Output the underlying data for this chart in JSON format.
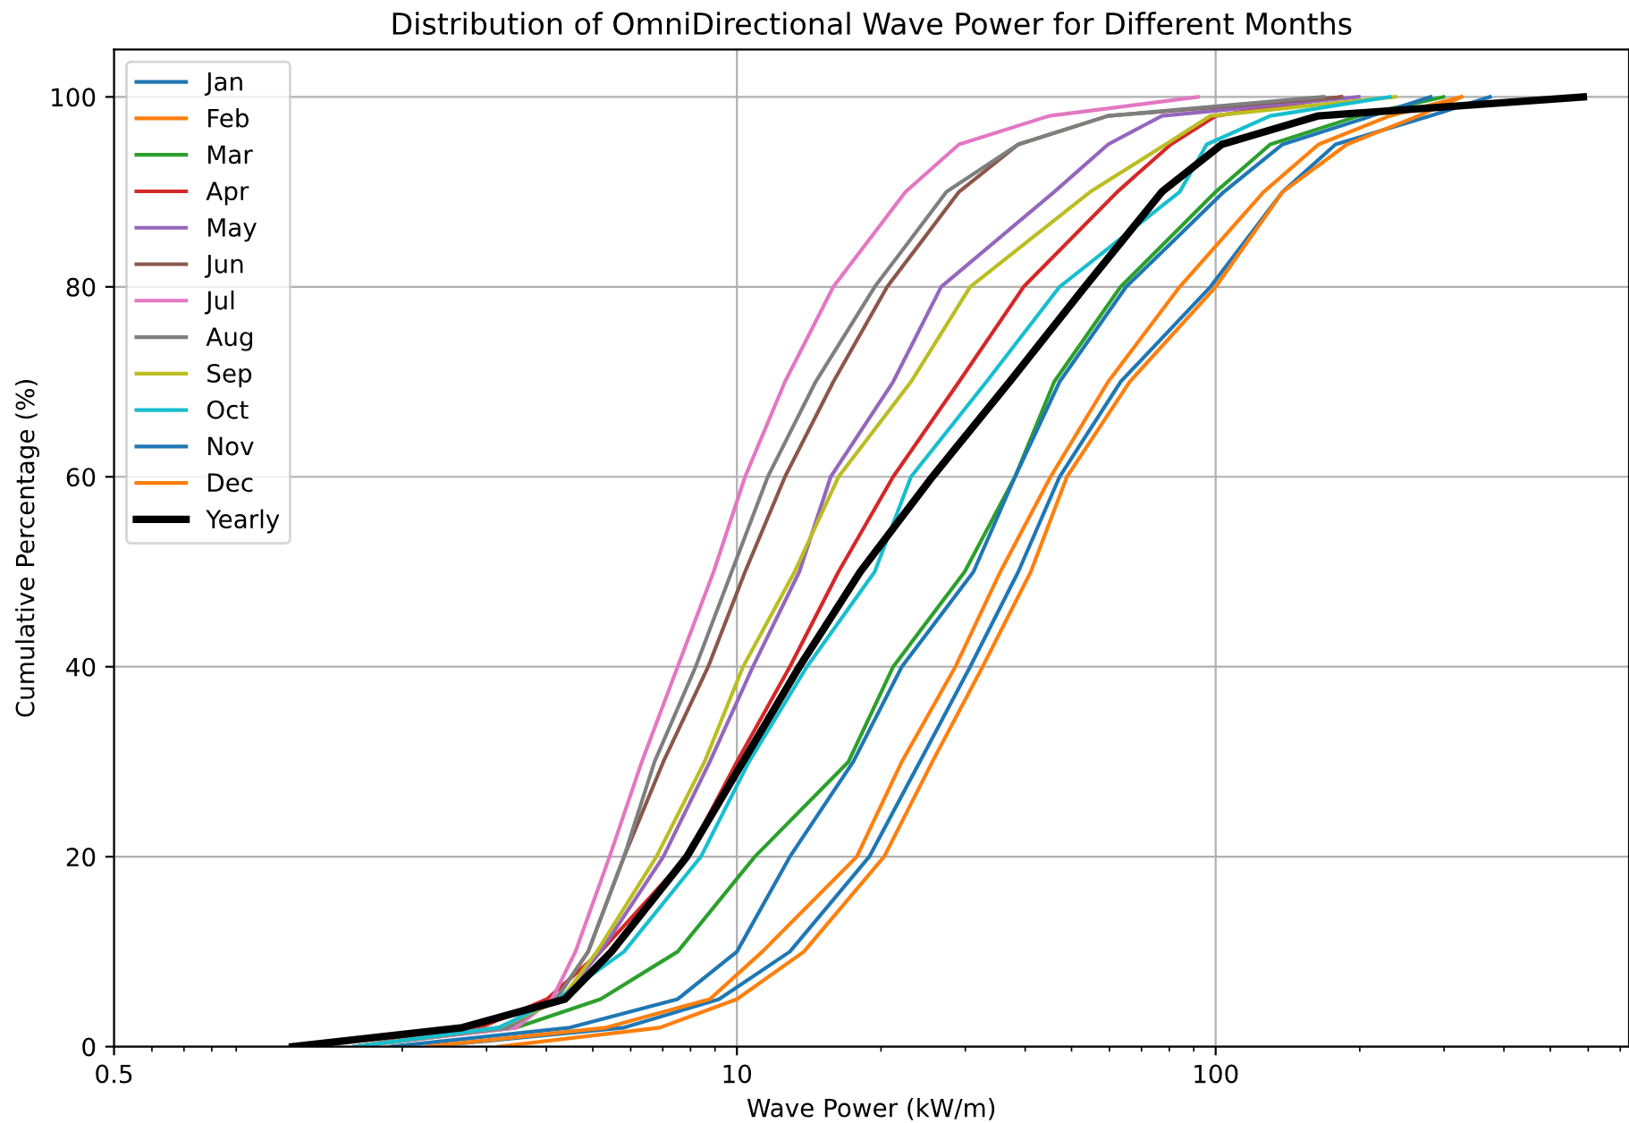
{
  "chart_data": {
    "type": "line",
    "title": "Distribution of OmniDirectional Wave Power for Different Months",
    "xlabel": "Wave Power (kW/m)",
    "ylabel": "Cumulative Percentage (%)",
    "log": "x",
    "xlim": [
      0.5,
      730
    ],
    "xticks": [
      0.5,
      10,
      100
    ],
    "ylim": [
      0,
      105
    ],
    "yticks": [
      0,
      20,
      40,
      60,
      80,
      100
    ],
    "grid": true,
    "legend": "top left",
    "series": [
      {
        "name": "Jan",
        "color": "#1f77b4",
        "x": [
          2.25,
          5.81,
          9.18,
          12.9,
          18.9,
          24.1,
          30.7,
          38.7,
          47.2,
          63.3,
          97.5,
          138,
          178,
          281,
          374
        ],
        "values": [
          0,
          2,
          5,
          10,
          20,
          30,
          40,
          50,
          60,
          70,
          80,
          90,
          95,
          98,
          100
        ]
      },
      {
        "name": "Feb",
        "color": "#ff7f0e",
        "x": [
          3.18,
          6.9,
          10.0,
          13.8,
          20.3,
          25.6,
          32.6,
          41.1,
          48.9,
          66.1,
          100,
          138,
          188,
          265,
          326
        ],
        "values": [
          0,
          2,
          5,
          10,
          20,
          30,
          40,
          50,
          60,
          70,
          80,
          90,
          95,
          98,
          100
        ]
      },
      {
        "name": "Mar",
        "color": "#2ca02c",
        "x": [
          1.59,
          3.46,
          5.19,
          7.52,
          10.9,
          17.1,
          21.2,
          29.9,
          38.1,
          46.0,
          63.3,
          100,
          130,
          199,
          299
        ],
        "values": [
          0,
          2,
          5,
          10,
          20,
          30,
          40,
          50,
          60,
          70,
          80,
          90,
          95,
          98,
          100
        ]
      },
      {
        "name": "Apr",
        "color": "#d62728",
        "x": [
          1.59,
          2.91,
          4.01,
          5.19,
          7.86,
          10.0,
          12.9,
          16.3,
          21.2,
          29.1,
          39.7,
          62.3,
          80.6,
          100,
          183
        ],
        "values": [
          0,
          2,
          5,
          10,
          20,
          30,
          40,
          50,
          60,
          70,
          80,
          90,
          95,
          98,
          100
        ]
      },
      {
        "name": "May",
        "color": "#9467bd",
        "x": [
          1.59,
          3.18,
          4.3,
          5.19,
          7.02,
          8.78,
          10.8,
          13.5,
          15.7,
          21.2,
          26.7,
          46.0,
          59.6,
          77.2,
          199
        ],
        "values": [
          0,
          2,
          5,
          10,
          20,
          30,
          40,
          50,
          60,
          70,
          80,
          90,
          95,
          98,
          100
        ]
      },
      {
        "name": "Jun",
        "color": "#8c564b",
        "x": [
          1.59,
          3.32,
          4.19,
          4.89,
          5.81,
          7.02,
          8.71,
          10.4,
          12.6,
          15.9,
          20.6,
          29.1,
          38.7,
          59.6,
          183
        ],
        "values": [
          0,
          2,
          5,
          10,
          20,
          30,
          40,
          50,
          60,
          70,
          80,
          90,
          95,
          98,
          100
        ]
      },
      {
        "name": "Jul",
        "color": "#e377c2",
        "x": [
          1.59,
          3.46,
          4.11,
          4.6,
          5.42,
          6.33,
          7.52,
          8.94,
          10.4,
          12.6,
          15.9,
          22.5,
          29.1,
          44.9,
          91.8
        ],
        "values": [
          0,
          2,
          5,
          10,
          20,
          30,
          40,
          50,
          60,
          70,
          80,
          90,
          95,
          98,
          100
        ]
      },
      {
        "name": "Aug",
        "color": "#7f7f7f",
        "x": [
          1.59,
          3.32,
          4.19,
          4.89,
          5.81,
          6.73,
          8.2,
          9.75,
          11.6,
          14.6,
          19.4,
          27.4,
          38.7,
          59.6,
          168
        ],
        "values": [
          0,
          2,
          5,
          10,
          20,
          30,
          40,
          50,
          60,
          70,
          80,
          90,
          95,
          98,
          100
        ]
      },
      {
        "name": "Sep",
        "color": "#bcbd22",
        "x": [
          1.59,
          3.18,
          4.3,
          5.1,
          6.79,
          8.56,
          10.3,
          13.2,
          16.3,
          23.1,
          30.7,
          54.7,
          78.6,
          97.5,
          237
        ],
        "values": [
          0,
          2,
          5,
          10,
          20,
          30,
          40,
          50,
          60,
          70,
          80,
          90,
          95,
          98,
          100
        ]
      },
      {
        "name": "Oct",
        "color": "#17becf",
        "x": [
          1.59,
          3.18,
          4.22,
          5.81,
          8.41,
          10.6,
          14.0,
          19.4,
          23.1,
          33.2,
          47.2,
          84.1,
          95.8,
          130,
          231
        ],
        "values": [
          0,
          2,
          5,
          10,
          20,
          30,
          40,
          50,
          60,
          70,
          80,
          90,
          95,
          98,
          100
        ]
      },
      {
        "name": "Nov",
        "color": "#1f77b4",
        "x": [
          1.89,
          4.48,
          7.52,
          10.0,
          12.9,
          17.5,
          22.1,
          31.2,
          38.1,
          47.2,
          65.0,
          104,
          138,
          212,
          281
        ],
        "values": [
          0,
          2,
          5,
          10,
          20,
          30,
          40,
          50,
          60,
          70,
          80,
          90,
          95,
          98,
          100
        ]
      },
      {
        "name": "Dec",
        "color": "#ff7f0e",
        "x": [
          2.25,
          5.33,
          8.78,
          11.3,
          17.8,
          22.1,
          28.6,
          35.5,
          45.2,
          59.6,
          84.1,
          126,
          164,
          231,
          326
        ],
        "values": [
          0,
          2,
          5,
          10,
          20,
          30,
          40,
          50,
          60,
          70,
          80,
          90,
          95,
          98,
          100
        ]
      },
      {
        "name": "Yearly",
        "color": "#000000",
        "x": [
          1.18,
          2.67,
          4.37,
          5.47,
          7.86,
          10.3,
          13.5,
          18.1,
          25.6,
          37.1,
          53.3,
          77.2,
          103,
          164,
          586
        ],
        "values": [
          0,
          2,
          5,
          10,
          20,
          30,
          40,
          50,
          60,
          70,
          80,
          90,
          95,
          98,
          100
        ]
      }
    ]
  }
}
